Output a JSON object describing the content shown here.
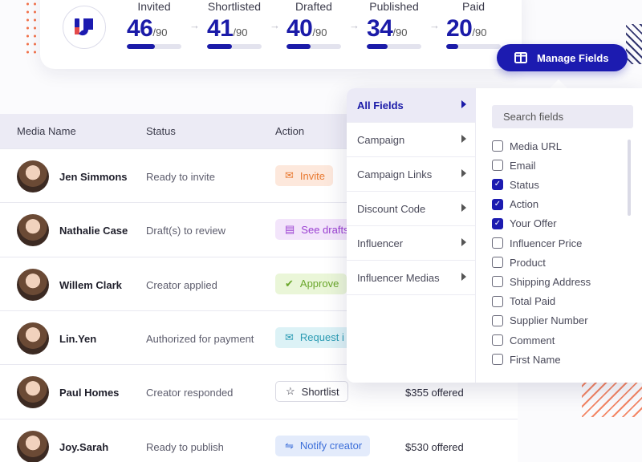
{
  "stats": [
    {
      "label": "Invited",
      "value": "46",
      "total": "/90",
      "progress": 0.51
    },
    {
      "label": "Shortlisted",
      "value": "41",
      "total": "/90",
      "progress": 0.46
    },
    {
      "label": "Drafted",
      "value": "40",
      "total": "/90",
      "progress": 0.44
    },
    {
      "label": "Published",
      "value": "34",
      "total": "/90",
      "progress": 0.38
    },
    {
      "label": "Paid",
      "value": "20",
      "total": "/90",
      "progress": 0.22
    }
  ],
  "manage_fields_label": "Manage Fields",
  "table": {
    "headers": {
      "media_name": "Media Name",
      "status": "Status",
      "action": "Action"
    },
    "rows": [
      {
        "name": "Jen Simmons",
        "status": "Ready to invite",
        "action": "Invite",
        "action_icon": "mail-icon",
        "offer": ""
      },
      {
        "name": "Nathalie Case",
        "status": "Draft(s) to review",
        "action": "See drafts",
        "action_icon": "document-icon",
        "offer": ""
      },
      {
        "name": "Willem Clark",
        "status": "Creator applied",
        "action": "Approve",
        "action_icon": "check-icon",
        "offer": ""
      },
      {
        "name": "Lin.Yen",
        "status": "Authorized for payment",
        "action": "Request i",
        "action_icon": "mail-icon",
        "offer": ""
      },
      {
        "name": "Paul Homes",
        "status": "Creator responded",
        "action": "Shortlist",
        "action_icon": "star-icon",
        "offer": "$355 offered"
      },
      {
        "name": "Joy.Sarah",
        "status": "Ready to publish",
        "action": "Notify creator",
        "action_icon": "handshake-icon",
        "offer": "$530 offered"
      }
    ]
  },
  "fields_panel": {
    "categories": [
      "All Fields",
      "Campaign",
      "Campaign Links",
      "Discount Code",
      "Influencer",
      "Influencer Medias"
    ],
    "active_category": "All Fields",
    "search_placeholder": "Search fields",
    "fields": [
      {
        "label": "Media URL",
        "checked": false
      },
      {
        "label": "Email",
        "checked": false
      },
      {
        "label": "Status",
        "checked": true
      },
      {
        "label": "Action",
        "checked": true
      },
      {
        "label": "Your Offer",
        "checked": true
      },
      {
        "label": "Influencer Price",
        "checked": false
      },
      {
        "label": "Product",
        "checked": false
      },
      {
        "label": "Shipping Address",
        "checked": false
      },
      {
        "label": "Total Paid",
        "checked": false
      },
      {
        "label": "Supplier Number",
        "checked": false
      },
      {
        "label": "Comment",
        "checked": false
      },
      {
        "label": "First Name",
        "checked": false
      }
    ]
  },
  "colors": {
    "brand": "#1c1bb0",
    "accent": "#f2714a",
    "header_bg": "#ecebf5"
  }
}
